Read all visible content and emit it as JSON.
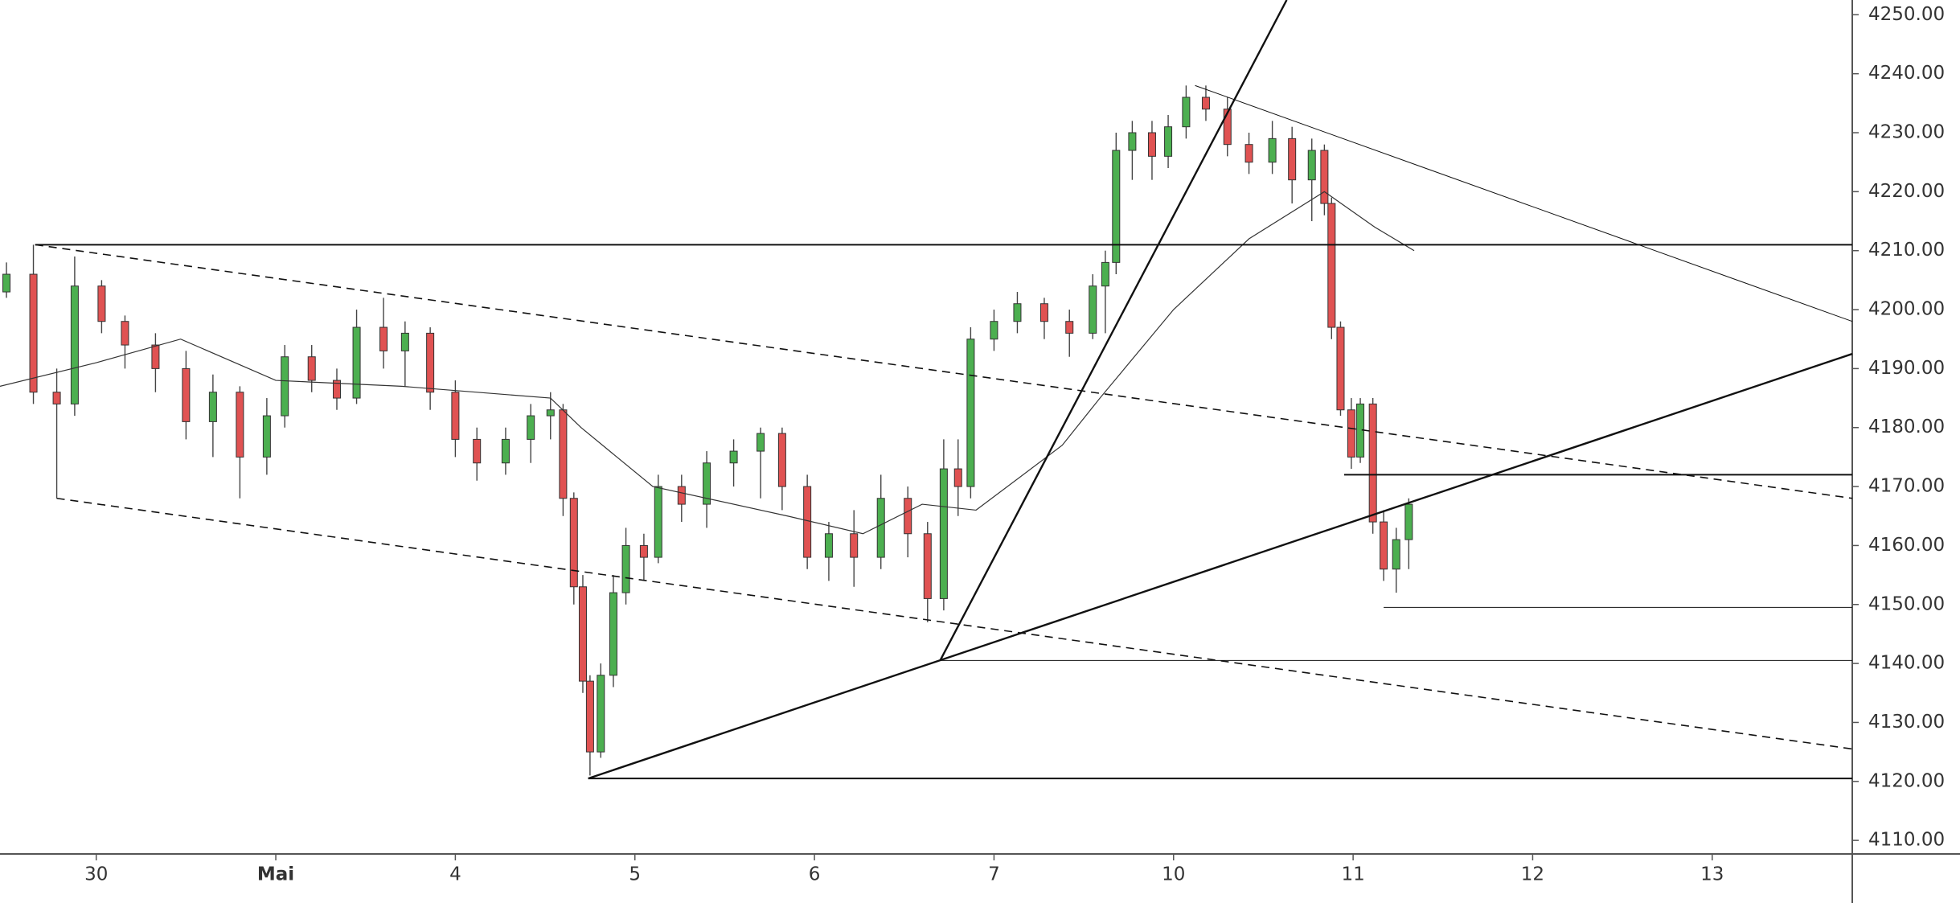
{
  "chart_data": {
    "type": "candlestick",
    "xlim": [
      -0.536,
      9.78
    ],
    "xticks": [
      {
        "value": 0,
        "label": "30"
      },
      {
        "value": 1,
        "label": "Mai"
      },
      {
        "value": 2,
        "label": "4"
      },
      {
        "value": 3,
        "label": "5"
      },
      {
        "value": 4,
        "label": "6"
      },
      {
        "value": 5,
        "label": "7"
      },
      {
        "value": 6,
        "label": "10"
      },
      {
        "value": 7,
        "label": "11"
      },
      {
        "value": 8,
        "label": "12"
      },
      {
        "value": 9,
        "label": "13"
      }
    ],
    "ylim": [
      4107.7,
      4252.5
    ],
    "yticks": [
      {
        "value": 4110,
        "label": "4110.00"
      },
      {
        "value": 4120,
        "label": "4120.00"
      },
      {
        "value": 4130,
        "label": "4130.00"
      },
      {
        "value": 4140,
        "label": "4140.00"
      },
      {
        "value": 4150,
        "label": "4150.00"
      },
      {
        "value": 4160,
        "label": "4160.00"
      },
      {
        "value": 4170,
        "label": "4170.00"
      },
      {
        "value": 4180,
        "label": "4180.00"
      },
      {
        "value": 4190,
        "label": "4190.00"
      },
      {
        "value": 4200,
        "label": "4200.00"
      },
      {
        "value": 4210,
        "label": "4210.00"
      },
      {
        "value": 4220,
        "label": "4220.00"
      },
      {
        "value": 4230,
        "label": "4230.00"
      },
      {
        "value": 4240,
        "label": "4240.00"
      },
      {
        "value": 4250,
        "label": "4250.00"
      }
    ],
    "up_color": "#4caf50",
    "down_color": "#e05252",
    "x": [
      -0.5,
      -0.35,
      -0.22,
      -0.12,
      0.03,
      0.16,
      0.33,
      0.5,
      0.65,
      0.8,
      0.95,
      1.05,
      1.2,
      1.34,
      1.45,
      1.6,
      1.72,
      1.86,
      2.0,
      2.12,
      2.28,
      2.42,
      2.53,
      2.6,
      2.66,
      2.71,
      2.75,
      2.81,
      2.88,
      2.95,
      3.05,
      3.13,
      3.26,
      3.4,
      3.55,
      3.7,
      3.82,
      3.96,
      4.08,
      4.22,
      4.37,
      4.52,
      4.63,
      4.72,
      4.8,
      4.87,
      5.0,
      5.13,
      5.28,
      5.42,
      5.55,
      5.62,
      5.68,
      5.77,
      5.88,
      5.97,
      6.07,
      6.18,
      6.3,
      6.42,
      6.55,
      6.66,
      6.77,
      6.84,
      6.88,
      6.93,
      6.99,
      7.04,
      7.11,
      7.17,
      7.24,
      7.31
    ],
    "open": [
      4203,
      4206,
      4186,
      4184,
      4204,
      4198,
      4194,
      4190,
      4181,
      4186,
      4175,
      4182,
      4192,
      4188,
      4185,
      4197,
      4193,
      4196,
      4186,
      4178,
      4174,
      4178,
      4182,
      4183,
      4168,
      4153,
      4137,
      4125,
      4138,
      4152,
      4160,
      4158,
      4170,
      4167,
      4174,
      4176,
      4179,
      4170,
      4158,
      4162,
      4158,
      4168,
      4162,
      4151,
      4173,
      4170,
      4195,
      4198,
      4201,
      4198,
      4196,
      4204,
      4208,
      4227,
      4230,
      4226,
      4231,
      4236,
      4234,
      4228,
      4225,
      4229,
      4222,
      4227,
      4218,
      4197,
      4183,
      4175,
      4184,
      4164,
      4156,
      4161
    ],
    "high": [
      4208,
      4211,
      4190,
      4209,
      4205,
      4199,
      4196,
      4193,
      4189,
      4187,
      4185,
      4194,
      4194,
      4190,
      4200,
      4202,
      4198,
      4197,
      4188,
      4180,
      4180,
      4184,
      4186,
      4184,
      4169,
      4155,
      4138,
      4140,
      4155,
      4163,
      4162,
      4172,
      4172,
      4176,
      4178,
      4180,
      4180,
      4172,
      4164,
      4166,
      4172,
      4170,
      4164,
      4178,
      4178,
      4197,
      4200,
      4203,
      4202,
      4200,
      4206,
      4210,
      4230,
      4232,
      4232,
      4233,
      4238,
      4238,
      4236,
      4230,
      4232,
      4231,
      4229,
      4228,
      4219,
      4198,
      4185,
      4185,
      4185,
      4166,
      4163,
      4168
    ],
    "low": [
      4202,
      4184,
      4168,
      4182,
      4196,
      4190,
      4186,
      4178,
      4175,
      4168,
      4172,
      4180,
      4186,
      4183,
      4184,
      4190,
      4187,
      4183,
      4175,
      4171,
      4172,
      4174,
      4178,
      4165,
      4150,
      4135,
      4121,
      4124,
      4136,
      4150,
      4154,
      4157,
      4164,
      4163,
      4170,
      4168,
      4166,
      4156,
      4154,
      4153,
      4156,
      4158,
      4147,
      4149,
      4165,
      4168,
      4193,
      4196,
      4195,
      4192,
      4195,
      4196,
      4206,
      4222,
      4222,
      4224,
      4229,
      4232,
      4226,
      4223,
      4223,
      4218,
      4215,
      4216,
      4195,
      4182,
      4173,
      4174,
      4162,
      4154,
      4152,
      4156
    ],
    "close": [
      4206,
      4186,
      4184,
      4204,
      4198,
      4194,
      4190,
      4181,
      4186,
      4175,
      4182,
      4192,
      4188,
      4185,
      4197,
      4193,
      4196,
      4186,
      4178,
      4174,
      4178,
      4182,
      4183,
      4168,
      4153,
      4137,
      4125,
      4138,
      4152,
      4160,
      4158,
      4170,
      4167,
      4174,
      4176,
      4179,
      4170,
      4158,
      4162,
      4158,
      4168,
      4162,
      4151,
      4173,
      4170,
      4195,
      4198,
      4201,
      4198,
      4196,
      4204,
      4208,
      4227,
      4230,
      4226,
      4231,
      4236,
      4234,
      4228,
      4225,
      4229,
      4222,
      4227,
      4218,
      4197,
      4183,
      4175,
      4184,
      4164,
      4156,
      4161,
      4167
    ],
    "ma": {
      "x": [
        -0.536,
        0,
        0.47,
        1.0,
        1.7,
        2.53,
        2.7,
        3.1,
        3.85,
        4.27,
        4.6,
        4.9,
        5.38,
        5.59,
        6.0,
        6.42,
        6.84,
        7.12,
        7.34
      ],
      "values": [
        4187,
        4191,
        4195,
        4188,
        4187,
        4185,
        4180,
        4170,
        4165,
        4162,
        4167,
        4166,
        4177,
        4185,
        4200,
        4212,
        4220,
        4214,
        4210
      ]
    },
    "lines": [
      {
        "x": [
          -0.34,
          9.78
        ],
        "y": [
          4211,
          4211
        ],
        "style": "solid",
        "width": 2
      },
      {
        "x": [
          -0.34,
          9.78
        ],
        "y": [
          4211,
          4168
        ],
        "style": "dashed",
        "width": 1.6
      },
      {
        "x": [
          -0.22,
          9.78
        ],
        "y": [
          4168,
          4125.5
        ],
        "style": "dashed",
        "width": 1.6
      },
      {
        "x": [
          2.74,
          9.78
        ],
        "y": [
          4120.5,
          4192.5
        ],
        "style": "solid",
        "width": 2.4
      },
      {
        "x": [
          4.7,
          6.63
        ],
        "y": [
          4140.5,
          4252.5
        ],
        "style": "solid",
        "width": 2.4
      },
      {
        "x": [
          6.12,
          9.78
        ],
        "y": [
          4238,
          4198
        ],
        "style": "solid",
        "width": 1
      },
      {
        "x": [
          2.74,
          9.78
        ],
        "y": [
          4120.5,
          4120.5
        ],
        "style": "solid",
        "width": 2
      },
      {
        "x": [
          4.7,
          9.78
        ],
        "y": [
          4140.5,
          4140.5
        ],
        "style": "solid",
        "width": 1
      },
      {
        "x": [
          6.95,
          9.78
        ],
        "y": [
          4172,
          4172
        ],
        "style": "solid",
        "width": 2
      },
      {
        "x": [
          7.17,
          9.78
        ],
        "y": [
          4149.5,
          4149.5
        ],
        "style": "solid",
        "width": 1
      }
    ]
  }
}
